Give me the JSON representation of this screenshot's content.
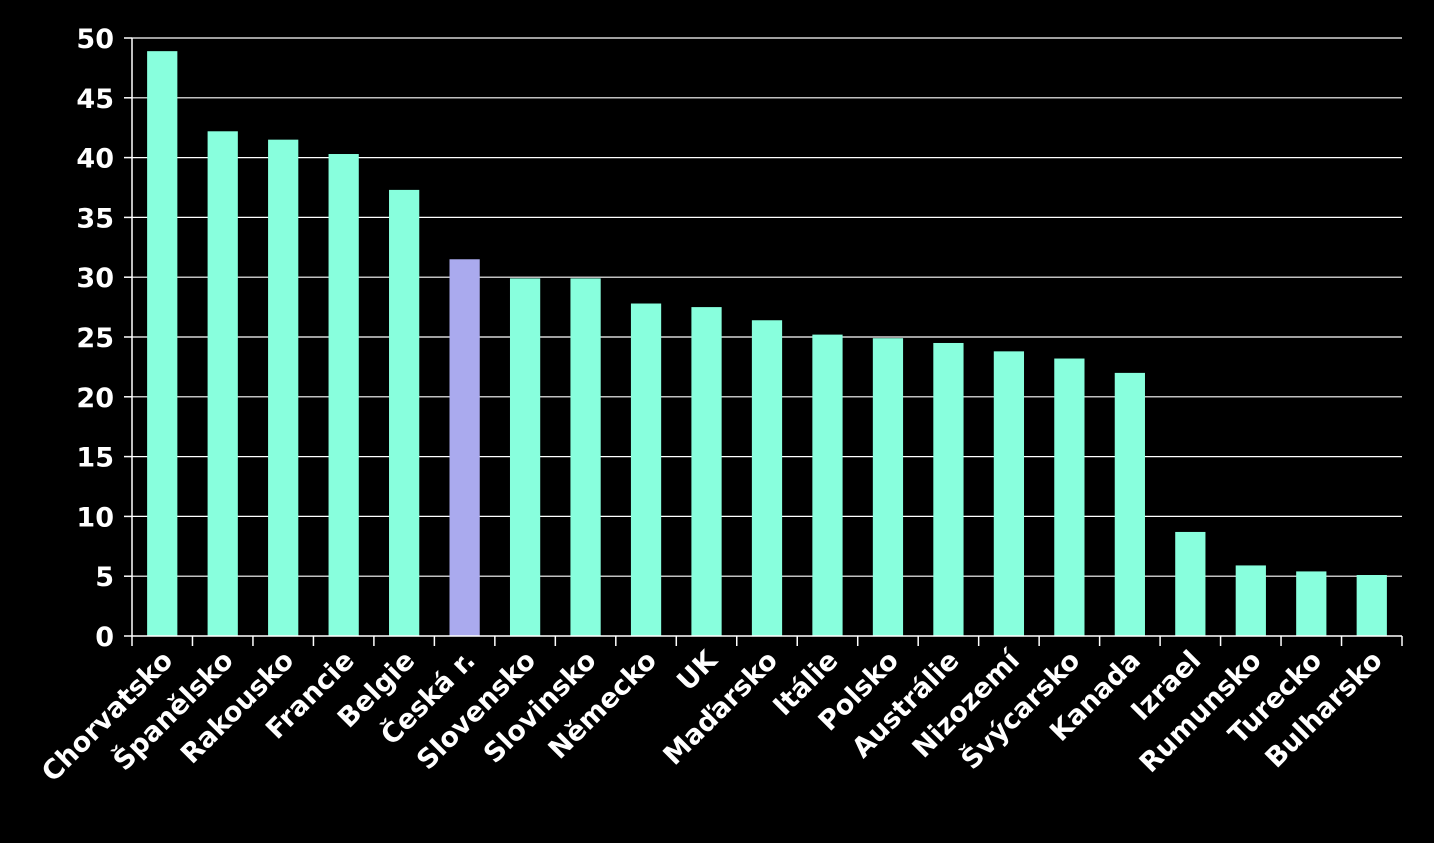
{
  "chart_data": {
    "type": "bar",
    "title": "",
    "xlabel": "",
    "ylabel": "",
    "ylim": [
      0,
      50
    ],
    "yticks": [
      0,
      5,
      10,
      15,
      20,
      25,
      30,
      35,
      40,
      45,
      50
    ],
    "grid": true,
    "legend": "none",
    "categories": [
      "Chorvatsko",
      "Španělsko",
      "Rakousko",
      "Francie",
      "Belgie",
      "Česká r.",
      "Slovensko",
      "Slovinsko",
      "Německo",
      "UK",
      "Maďarsko",
      "Itálie",
      "Polsko",
      "Austrálie",
      "Nizozemí",
      "Švýcarsko",
      "Kanada",
      "Izrael",
      "Rumunsko",
      "Turecko",
      "Bulharsko"
    ],
    "values": [
      48.9,
      42.2,
      41.5,
      40.3,
      37.3,
      31.5,
      29.9,
      29.9,
      27.8,
      27.5,
      26.4,
      25.2,
      24.9,
      24.5,
      23.8,
      23.2,
      22.0,
      8.7,
      5.9,
      5.4,
      5.1
    ],
    "highlight_index": 5
  },
  "colors": {
    "background": "#000000",
    "bar": "#88ffdd",
    "highlight": "#aaaaee",
    "grid": "#ffffff",
    "text": "#ffffff"
  }
}
